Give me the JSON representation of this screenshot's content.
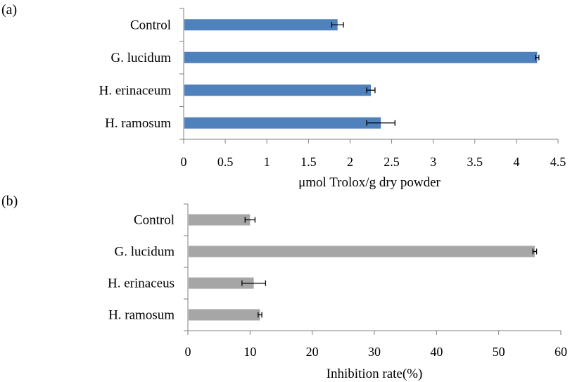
{
  "chart_data": [
    {
      "type": "bar",
      "orientation": "horizontal",
      "panel_label": "(a)",
      "categories": [
        "Control",
        "G. lucidum",
        "H. erinaceum",
        "H. ramosum"
      ],
      "values": [
        1.85,
        4.25,
        2.25,
        2.37
      ],
      "errors": [
        0.07,
        0.02,
        0.05,
        0.17
      ],
      "xlabel": "μmol Trolox/g dry powder",
      "ylabel": "",
      "xlim": [
        0,
        4.5
      ],
      "xticks": [
        "0",
        "0.5",
        "1",
        "1.5",
        "2",
        "2.5",
        "3",
        "3.5",
        "4",
        "4.5"
      ],
      "color": "#4f81bd",
      "grid": false
    },
    {
      "type": "bar",
      "orientation": "horizontal",
      "panel_label": "(b)",
      "categories": [
        "Control",
        "G. lucidum",
        "H. erinaceus",
        "H. ramosum"
      ],
      "values": [
        10.0,
        55.8,
        10.6,
        11.6
      ],
      "errors": [
        0.8,
        0.3,
        1.9,
        0.3
      ],
      "xlabel": "Inhibition rate(%)",
      "ylabel": "",
      "xlim": [
        0,
        60
      ],
      "xticks": [
        "0",
        "10",
        "20",
        "30",
        "40",
        "50",
        "60"
      ],
      "color": "#a6a6a6",
      "grid": false
    }
  ]
}
